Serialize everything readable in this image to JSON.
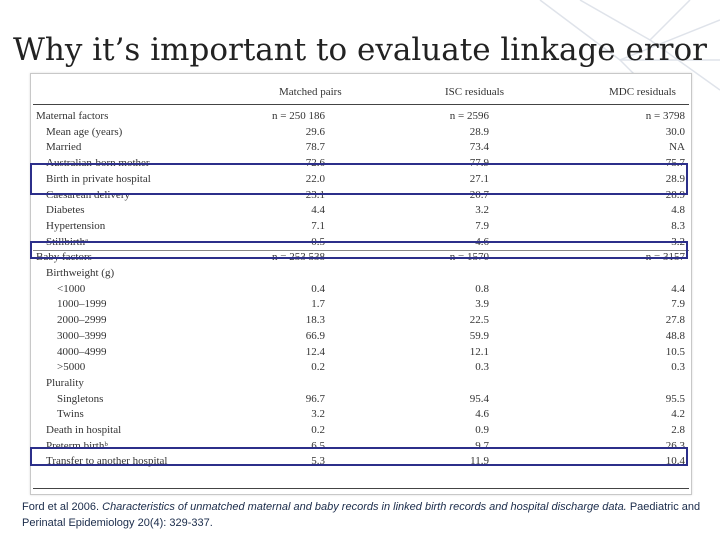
{
  "slide": {
    "title": "Why it’s important to evaluate linkage error",
    "colors": {
      "highlight_border": "#2c2f8a",
      "caption_text": "#1a2b4a"
    }
  },
  "table": {
    "columns": [
      "Matched pairs",
      "ISC residuals",
      "MDC residuals"
    ],
    "sections": [
      {
        "label": "Maternal factors",
        "counts": [
          "n = 250 186",
          "n = 2596",
          "n = 3798"
        ],
        "rows": [
          {
            "label": "Mean age (years)",
            "values": [
              "29.6",
              "28.9",
              "30.0"
            ]
          },
          {
            "label": "Married",
            "values": [
              "78.7",
              "73.4",
              "NA"
            ]
          },
          {
            "label": "Australian-born mother",
            "values": [
              "72.6",
              "77.9",
              "75.7"
            ]
          },
          {
            "label": "Birth in private hospital",
            "values": [
              "22.0",
              "27.1",
              "28.9"
            ]
          },
          {
            "label": "Caesarean delivery",
            "values": [
              "23.1",
              "20.7",
              "28.9"
            ]
          },
          {
            "label": "Diabetes",
            "values": [
              "4.4",
              "3.2",
              "4.8"
            ]
          },
          {
            "label": "Hypertension",
            "values": [
              "7.1",
              "7.9",
              "8.3"
            ]
          },
          {
            "label": "Stillbirthᵃ",
            "values": [
              "0.5",
              "4.6",
              "3.2"
            ]
          }
        ]
      },
      {
        "label": "Baby factors",
        "counts": [
          "n = 253 538",
          "n = 1570",
          "n = 3157"
        ],
        "rows": [
          {
            "label": "Birthweight (g)",
            "values": [
              "",
              "",
              ""
            ]
          },
          {
            "label": "<1000",
            "values": [
              "0.4",
              "0.8",
              "4.4"
            ]
          },
          {
            "label": "1000–1999",
            "values": [
              "1.7",
              "3.9",
              "7.9"
            ]
          },
          {
            "label": "2000–2999",
            "values": [
              "18.3",
              "22.5",
              "27.8"
            ]
          },
          {
            "label": "3000–3999",
            "values": [
              "66.9",
              "59.9",
              "48.8"
            ]
          },
          {
            "label": "4000–4999",
            "values": [
              "12.4",
              "12.1",
              "10.5"
            ]
          },
          {
            "label": ">5000",
            "values": [
              "0.2",
              "0.3",
              "0.3"
            ]
          },
          {
            "label": "Plurality",
            "values": [
              "",
              "",
              ""
            ]
          },
          {
            "label": "Singletons",
            "values": [
              "96.7",
              "95.4",
              "95.5"
            ]
          },
          {
            "label": "Twins",
            "values": [
              "3.2",
              "4.6",
              "4.2"
            ]
          },
          {
            "label": "Death in hospital",
            "values": [
              "0.2",
              "0.9",
              "2.8"
            ]
          },
          {
            "label": "Preterm birthᵇ",
            "values": [
              "6.5",
              "9.7",
              "26.3"
            ]
          },
          {
            "label": "Transfer to another hospital",
            "values": [
              "5.3",
              "11.9",
              "10.4"
            ]
          }
        ]
      }
    ]
  },
  "caption": {
    "authors": "Ford et al 2006.",
    "article_title": "Characteristics of unmatched maternal and baby records in linked birth records and hospital discharge data.",
    "journal": "Paediatric and Perinatal Epidemiology",
    "citation": "20(4): 329-337."
  }
}
